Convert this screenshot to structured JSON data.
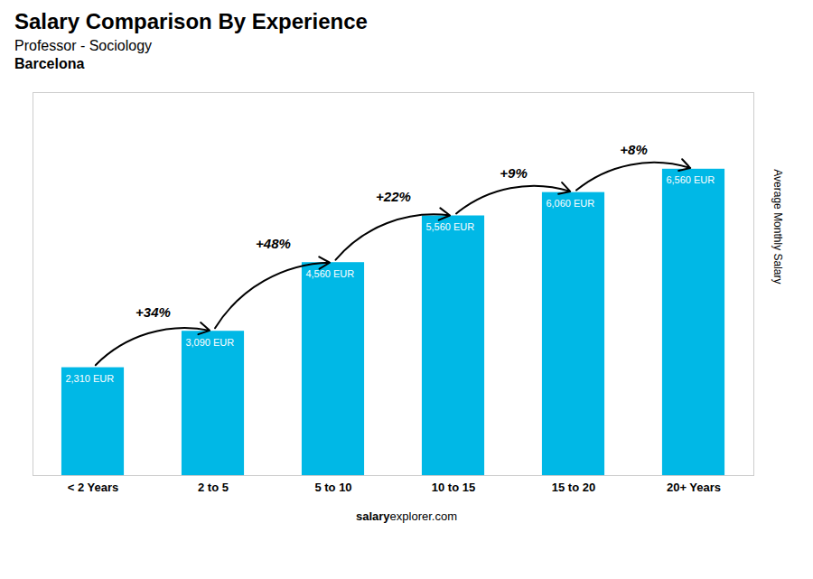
{
  "chart_data": {
    "type": "bar",
    "title": "Salary Comparison By Experience",
    "subtitle": [
      "Professor - Sociology",
      "Barcelona"
    ],
    "ylabel": "Average Monthly Salary",
    "categories": [
      "< 2 Years",
      "2 to 5",
      "5 to 10",
      "10 to 15",
      "15 to 20",
      "20+ Years"
    ],
    "values": [
      2310,
      3090,
      4560,
      5560,
      6060,
      6560
    ],
    "value_labels": [
      "2,310 EUR",
      "3,090 EUR",
      "4,560 EUR",
      "5,560 EUR",
      "6,060 EUR",
      "6,560 EUR"
    ],
    "data_labels": true,
    "color": "#00b8e6",
    "ylim": [
      0,
      8200
    ],
    "tick_labels": "x",
    "annotations": [
      {
        "text": "+34%",
        "from": "< 2 Years",
        "to": "2 to 5"
      },
      {
        "text": "+48%",
        "from": "2 to 5",
        "to": "5 to 10"
      },
      {
        "text": "+22%",
        "from": "5 to 10",
        "to": "10 to 15"
      },
      {
        "text": "+9%",
        "from": "10 to 15",
        "to": "15 to 20"
      },
      {
        "text": "+8%",
        "from": "15 to 20",
        "to": "20+ Years"
      }
    ],
    "footer": [
      "salary",
      "explorer.com"
    ]
  }
}
